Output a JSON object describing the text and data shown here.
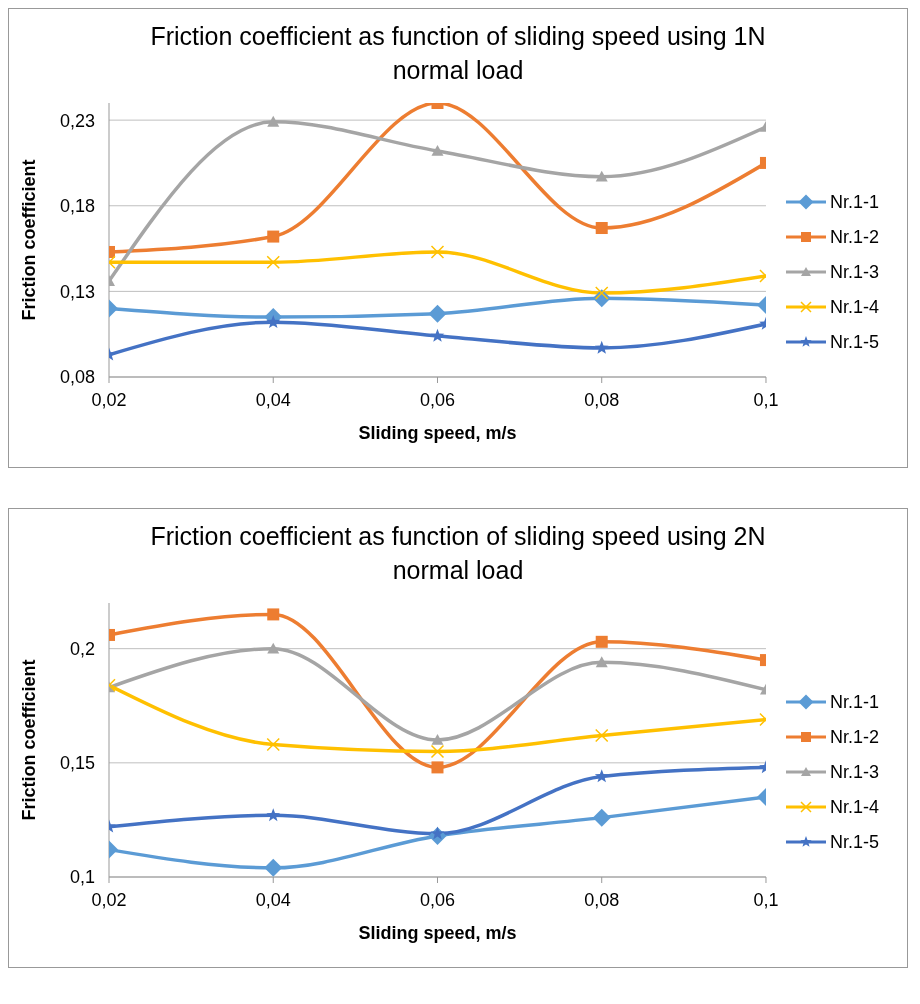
{
  "chart_data": [
    {
      "type": "line",
      "title": "Friction coefficient as function of sliding speed using 1N normal load",
      "xlabel": "Sliding speed, m/s",
      "ylabel": "Friction coefficient",
      "x": [
        0.02,
        0.04,
        0.06,
        0.08,
        0.1
      ],
      "xlim": [
        0.02,
        0.1
      ],
      "xticks": [
        {
          "value": 0.02,
          "label": "0,02"
        },
        {
          "value": 0.04,
          "label": "0,04"
        },
        {
          "value": 0.06,
          "label": "0,06"
        },
        {
          "value": 0.08,
          "label": "0,08"
        },
        {
          "value": 0.1,
          "label": "0,1"
        }
      ],
      "ylim": [
        0.08,
        0.24
      ],
      "yticks": [
        {
          "value": 0.08,
          "label": "0,08"
        },
        {
          "value": 0.13,
          "label": "0,13"
        },
        {
          "value": 0.18,
          "label": "0,18"
        },
        {
          "value": 0.23,
          "label": "0,23"
        }
      ],
      "grid": "y",
      "legend": "right",
      "series": [
        {
          "name": "Nr.1-1",
          "color": "#5b9bd5",
          "marker": "diamond",
          "values": [
            0.12,
            0.115,
            0.117,
            0.126,
            0.122
          ]
        },
        {
          "name": "Nr.1-2",
          "color": "#ed7d31",
          "marker": "square",
          "values": [
            0.153,
            0.162,
            0.24,
            0.167,
            0.205
          ]
        },
        {
          "name": "Nr.1-3",
          "color": "#a5a5a5",
          "marker": "triangle",
          "values": [
            0.136,
            0.229,
            0.212,
            0.197,
            0.226
          ]
        },
        {
          "name": "Nr.1-4",
          "color": "#ffc000",
          "marker": "cross",
          "values": [
            0.147,
            0.147,
            0.153,
            0.129,
            0.139
          ]
        },
        {
          "name": "Nr.1-5",
          "color": "#4472c4",
          "marker": "star",
          "values": [
            0.093,
            0.112,
            0.104,
            0.097,
            0.111
          ]
        }
      ]
    },
    {
      "type": "line",
      "title": "Friction coefficient as function of sliding speed using 2N normal load",
      "xlabel": "Sliding speed, m/s",
      "ylabel": "Friction coefficient",
      "x": [
        0.02,
        0.04,
        0.06,
        0.08,
        0.1
      ],
      "xlim": [
        0.02,
        0.1
      ],
      "xticks": [
        {
          "value": 0.02,
          "label": "0,02"
        },
        {
          "value": 0.04,
          "label": "0,04"
        },
        {
          "value": 0.06,
          "label": "0,06"
        },
        {
          "value": 0.08,
          "label": "0,08"
        },
        {
          "value": 0.1,
          "label": "0,1"
        }
      ],
      "ylim": [
        0.1,
        0.22
      ],
      "yticks": [
        {
          "value": 0.1,
          "label": "0,1"
        },
        {
          "value": 0.15,
          "label": "0,15"
        },
        {
          "value": 0.2,
          "label": "0,2"
        }
      ],
      "grid": "y",
      "legend": "right",
      "series": [
        {
          "name": "Nr.1-1",
          "color": "#5b9bd5",
          "marker": "diamond",
          "values": [
            0.112,
            0.104,
            0.118,
            0.126,
            0.135
          ]
        },
        {
          "name": "Nr.1-2",
          "color": "#ed7d31",
          "marker": "square",
          "values": [
            0.206,
            0.215,
            0.148,
            0.203,
            0.195
          ]
        },
        {
          "name": "Nr.1-3",
          "color": "#a5a5a5",
          "marker": "triangle",
          "values": [
            0.183,
            0.2,
            0.16,
            0.194,
            0.182
          ]
        },
        {
          "name": "Nr.1-4",
          "color": "#ffc000",
          "marker": "cross",
          "values": [
            0.184,
            0.158,
            0.155,
            0.162,
            0.169
          ]
        },
        {
          "name": "Nr.1-5",
          "color": "#4472c4",
          "marker": "star",
          "values": [
            0.122,
            0.127,
            0.119,
            0.144,
            0.148
          ]
        }
      ]
    }
  ]
}
